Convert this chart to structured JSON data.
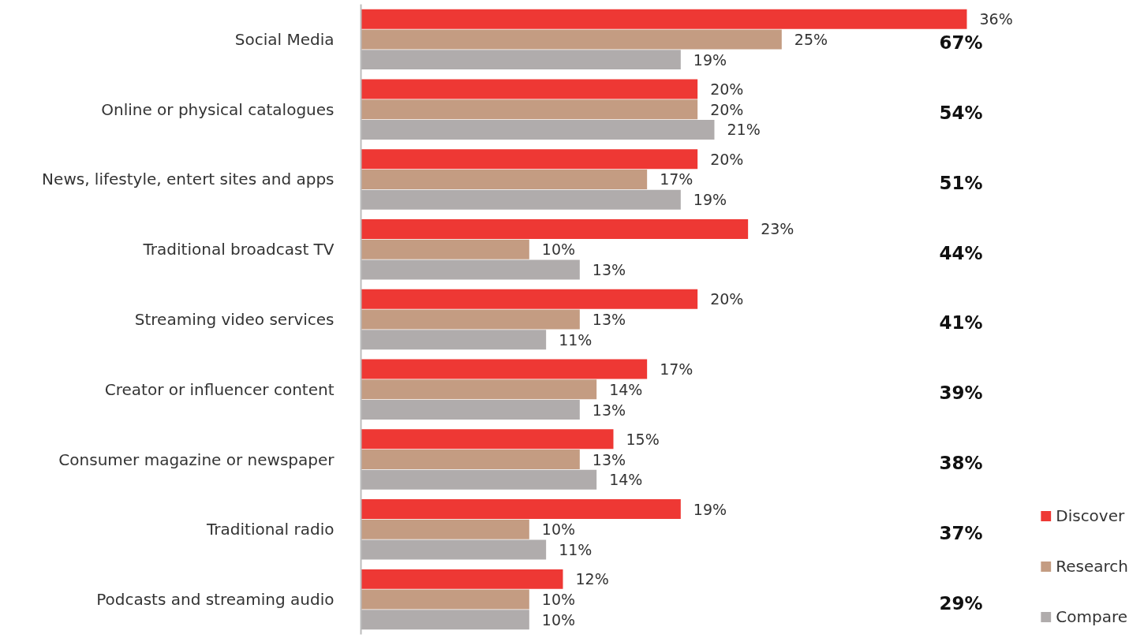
{
  "chart_data": {
    "type": "bar",
    "orientation": "horizontal",
    "categories": [
      "Social Media",
      "Online or physical catalogues",
      "News, lifestyle, entert sites and apps",
      "Traditional broadcast TV",
      "Streaming video services",
      "Creator or influencer content",
      "Consumer magazine or newspaper",
      "Traditional radio",
      "Podcasts and streaming audio"
    ],
    "series": [
      {
        "name": "Discover",
        "color": "#ee3834",
        "values": [
          36,
          20,
          20,
          23,
          20,
          17,
          15,
          19,
          12
        ],
        "value_labels": [
          "36%",
          "20%",
          "20%",
          "23%",
          "20%",
          "17%",
          "15%",
          "19%",
          "12%"
        ]
      },
      {
        "name": "Research",
        "color": "#c49c82",
        "values": [
          25,
          20,
          17,
          10,
          13,
          14,
          13,
          10,
          10
        ],
        "value_labels": [
          "25%",
          "20%",
          "17%",
          "10%",
          "13%",
          "14%",
          "13%",
          "10%",
          "10%"
        ]
      },
      {
        "name": "Compare",
        "color": "#b0acac",
        "values": [
          19,
          21,
          19,
          13,
          11,
          13,
          14,
          11,
          10
        ],
        "value_labels": [
          "19%",
          "21%",
          "19%",
          "13%",
          "11%",
          "13%",
          "14%",
          "11%",
          "10%"
        ]
      }
    ],
    "annotations": [
      "67%",
      "54%",
      "51%",
      "44%",
      "41%",
      "39%",
      "38%",
      "37%",
      "29%"
    ],
    "legend": "bottom right",
    "grid": false
  }
}
